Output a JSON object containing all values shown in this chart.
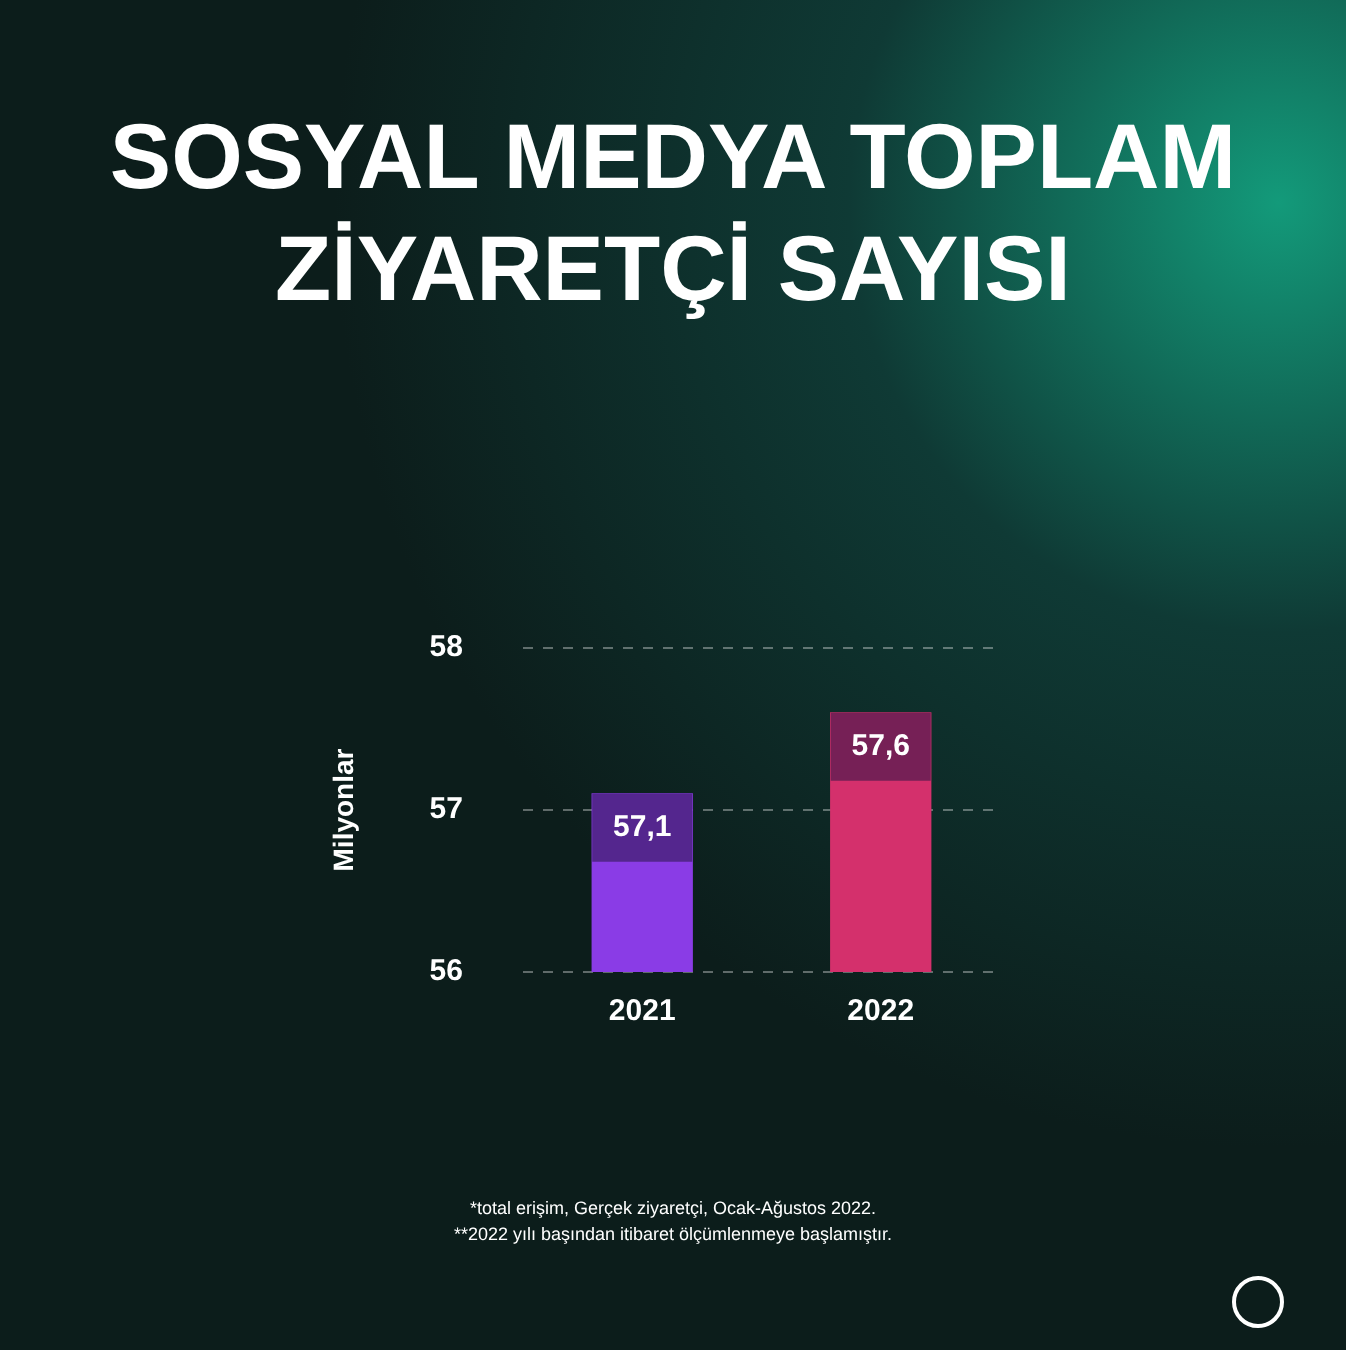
{
  "chart_data": {
    "type": "bar",
    "title": "SOSYAL MEDYA TOPLAM ZİYARETÇİ SAYISI",
    "ylabel": "Milyonlar",
    "categories": [
      "2021",
      "2022"
    ],
    "values": [
      57.1,
      57.6
    ],
    "value_labels": [
      "57,1",
      "57,6"
    ],
    "colors": [
      "#8a3ce6",
      "#d4306c"
    ],
    "ylim": [
      56,
      58
    ],
    "yticks": [
      56,
      57,
      58
    ],
    "grid": "y",
    "legend": false,
    "annotations": [
      "*total erişim, Gerçek ziyaretçi, Ocak-Ağustos 2022.",
      "**2022 yılı başından itibaret ölçümlenmeye başlamıştır."
    ]
  }
}
